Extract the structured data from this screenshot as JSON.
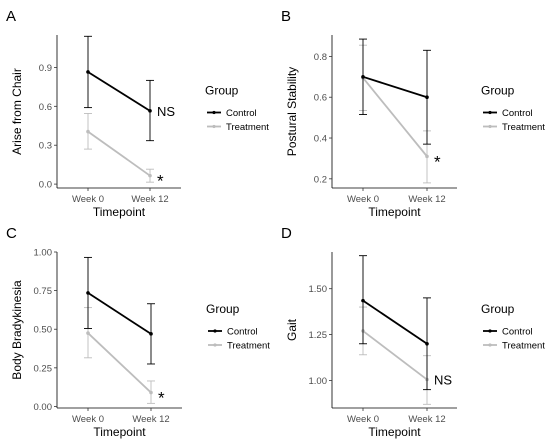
{
  "chart_data": [
    {
      "panel": "A",
      "type": "line",
      "xlabel": "Timepoint",
      "ylabel": "Arise from Chair",
      "categories": [
        "Week 0",
        "Week 12"
      ],
      "yticks": [
        "0.0",
        "0.3",
        "0.6",
        "0.9"
      ],
      "ylim": [
        -0.03,
        1.15
      ],
      "legend": {
        "title": "Group",
        "entries": [
          "Control",
          "Treatment"
        ],
        "placement": "right"
      },
      "series": [
        {
          "name": "Control",
          "color": "#000000",
          "values": [
            0.865,
            0.565
          ],
          "lower": [
            0.59,
            0.335
          ],
          "upper": [
            1.14,
            0.8
          ]
        },
        {
          "name": "Treatment",
          "color": "#bdbdbd",
          "values": [
            0.405,
            0.065
          ],
          "lower": [
            0.27,
            0.015
          ],
          "upper": [
            0.545,
            0.115
          ]
        }
      ],
      "annotations": [
        {
          "text": "NS",
          "series": "Control",
          "x": "Week 12"
        },
        {
          "text": "*",
          "series": "Treatment",
          "x": "Week 12"
        }
      ]
    },
    {
      "panel": "B",
      "type": "line",
      "xlabel": "Timepoint",
      "ylabel": "Postural Stability",
      "categories": [
        "Week 0",
        "Week 12"
      ],
      "yticks": [
        "0.2",
        "0.4",
        "0.6",
        "0.8"
      ],
      "ylim": [
        0.155,
        0.905
      ],
      "legend": {
        "title": "Group",
        "entries": [
          "Control",
          "Treatment"
        ],
        "placement": "right"
      },
      "series": [
        {
          "name": "Control",
          "color": "#000000",
          "values": [
            0.7,
            0.6
          ],
          "lower": [
            0.515,
            0.37
          ],
          "upper": [
            0.885,
            0.83
          ]
        },
        {
          "name": "Treatment",
          "color": "#bdbdbd",
          "values": [
            0.695,
            0.31
          ],
          "lower": [
            0.535,
            0.18
          ],
          "upper": [
            0.855,
            0.435
          ]
        }
      ],
      "annotations": [
        {
          "text": "*",
          "series": "Treatment",
          "x": "Week 12"
        }
      ]
    },
    {
      "panel": "C",
      "type": "line",
      "xlabel": "Timepoint",
      "ylabel": "Body Bradykinesia",
      "categories": [
        "Week 0",
        "Week 12"
      ],
      "yticks": [
        "0.00",
        "0.25",
        "0.50",
        "0.75",
        "1.00"
      ],
      "ylim": [
        -0.01,
        1.0
      ],
      "legend": {
        "title": "Group",
        "entries": [
          "Control",
          "Treatment"
        ],
        "placement": "right"
      },
      "series": [
        {
          "name": "Control",
          "color": "#000000",
          "values": [
            0.735,
            0.47
          ],
          "lower": [
            0.505,
            0.275
          ],
          "upper": [
            0.965,
            0.665
          ]
        },
        {
          "name": "Treatment",
          "color": "#bdbdbd",
          "values": [
            0.475,
            0.09
          ],
          "lower": [
            0.315,
            0.02
          ],
          "upper": [
            0.64,
            0.165
          ]
        }
      ],
      "annotations": [
        {
          "text": "*",
          "series": "Treatment",
          "x": "Week 12"
        }
      ]
    },
    {
      "panel": "D",
      "type": "line",
      "xlabel": "Timepoint",
      "ylabel": "Gait",
      "categories": [
        "Week 0",
        "Week 12"
      ],
      "yticks": [
        "1.00",
        "1.25",
        "1.50"
      ],
      "ylim": [
        0.85,
        1.7
      ],
      "legend": {
        "title": "Group",
        "entries": [
          "Control",
          "Treatment"
        ],
        "placement": "right"
      },
      "series": [
        {
          "name": "Control",
          "color": "#000000",
          "values": [
            1.435,
            1.2
          ],
          "lower": [
            1.2,
            0.95
          ],
          "upper": [
            1.68,
            1.45
          ]
        },
        {
          "name": "Treatment",
          "color": "#bdbdbd",
          "values": [
            1.27,
            1.005
          ],
          "lower": [
            1.14,
            0.87
          ],
          "upper": [
            1.4,
            1.135
          ]
        }
      ],
      "annotations": [
        {
          "text": "NS",
          "series": "Treatment",
          "x": "Week 12"
        }
      ]
    }
  ]
}
